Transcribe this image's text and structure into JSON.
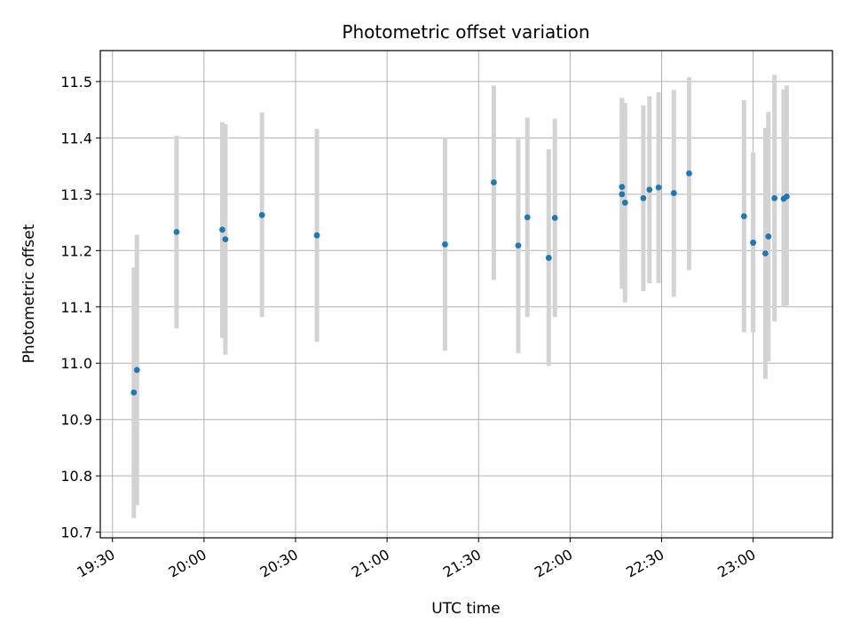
{
  "chart_data": {
    "type": "scatter",
    "title": "Photometric offset variation",
    "xlabel": "UTC time",
    "ylabel": "Photometric offset",
    "x_unit": "UTC time (HH:MM)",
    "xlim": [
      "19:26",
      "23:26"
    ],
    "ylim": [
      10.69,
      11.555
    ],
    "x_ticks": [
      "19:30",
      "20:00",
      "20:30",
      "21:00",
      "21:30",
      "22:00",
      "22:30",
      "23:00"
    ],
    "y_ticks": [
      "10.7",
      "10.8",
      "10.9",
      "11.0",
      "11.1",
      "11.2",
      "11.3",
      "11.4",
      "11.5"
    ],
    "grid": true,
    "legend": "none",
    "colors": {
      "points": "#1f77b4",
      "error_bars": "#d3d3d3",
      "grid": "#b0b0b0"
    },
    "points": [
      {
        "x": "19:37",
        "y": 10.948,
        "ylow": 10.725,
        "yhigh": 11.17
      },
      {
        "x": "19:38",
        "y": 10.988,
        "ylow": 10.748,
        "yhigh": 11.228
      },
      {
        "x": "19:51",
        "y": 11.233,
        "ylow": 11.062,
        "yhigh": 11.404
      },
      {
        "x": "20:06",
        "y": 11.237,
        "ylow": 11.045,
        "yhigh": 11.428
      },
      {
        "x": "20:07",
        "y": 11.22,
        "ylow": 11.015,
        "yhigh": 11.424
      },
      {
        "x": "20:19",
        "y": 11.263,
        "ylow": 11.082,
        "yhigh": 11.445
      },
      {
        "x": "20:37",
        "y": 11.227,
        "ylow": 11.038,
        "yhigh": 11.416
      },
      {
        "x": "21:19",
        "y": 11.211,
        "ylow": 11.022,
        "yhigh": 11.4
      },
      {
        "x": "21:35",
        "y": 11.321,
        "ylow": 11.148,
        "yhigh": 11.493
      },
      {
        "x": "21:43",
        "y": 11.209,
        "ylow": 11.018,
        "yhigh": 11.398
      },
      {
        "x": "21:46",
        "y": 11.259,
        "ylow": 11.082,
        "yhigh": 11.436
      },
      {
        "x": "21:53",
        "y": 11.187,
        "ylow": 10.995,
        "yhigh": 11.38
      },
      {
        "x": "21:55",
        "y": 11.258,
        "ylow": 11.082,
        "yhigh": 11.434
      },
      {
        "x": "22:17",
        "y": 11.313,
        "ylow": 11.156,
        "yhigh": 11.471
      },
      {
        "x": "22:17",
        "y": 11.3,
        "ylow": 11.132,
        "yhigh": 11.468
      },
      {
        "x": "22:18",
        "y": 11.285,
        "ylow": 11.108,
        "yhigh": 11.462
      },
      {
        "x": "22:24",
        "y": 11.293,
        "ylow": 11.128,
        "yhigh": 11.458
      },
      {
        "x": "22:26",
        "y": 11.308,
        "ylow": 11.142,
        "yhigh": 11.474
      },
      {
        "x": "22:29",
        "y": 11.312,
        "ylow": 11.142,
        "yhigh": 11.481
      },
      {
        "x": "22:34",
        "y": 11.302,
        "ylow": 11.118,
        "yhigh": 11.485
      },
      {
        "x": "22:39",
        "y": 11.337,
        "ylow": 11.165,
        "yhigh": 11.508
      },
      {
        "x": "22:57",
        "y": 11.261,
        "ylow": 11.055,
        "yhigh": 11.467
      },
      {
        "x": "23:00",
        "y": 11.214,
        "ylow": 11.055,
        "yhigh": 11.374
      },
      {
        "x": "23:00",
        "y": 11.214,
        "ylow": 11.055,
        "yhigh": 11.374
      },
      {
        "x": "23:04",
        "y": 11.195,
        "ylow": 10.972,
        "yhigh": 11.418
      },
      {
        "x": "23:05",
        "y": 11.225,
        "ylow": 11.003,
        "yhigh": 11.446
      },
      {
        "x": "23:07",
        "y": 11.293,
        "ylow": 11.074,
        "yhigh": 11.512
      },
      {
        "x": "23:10",
        "y": 11.292,
        "ylow": 11.099,
        "yhigh": 11.486
      },
      {
        "x": "23:11",
        "y": 11.296,
        "ylow": 11.102,
        "yhigh": 11.493
      }
    ]
  }
}
